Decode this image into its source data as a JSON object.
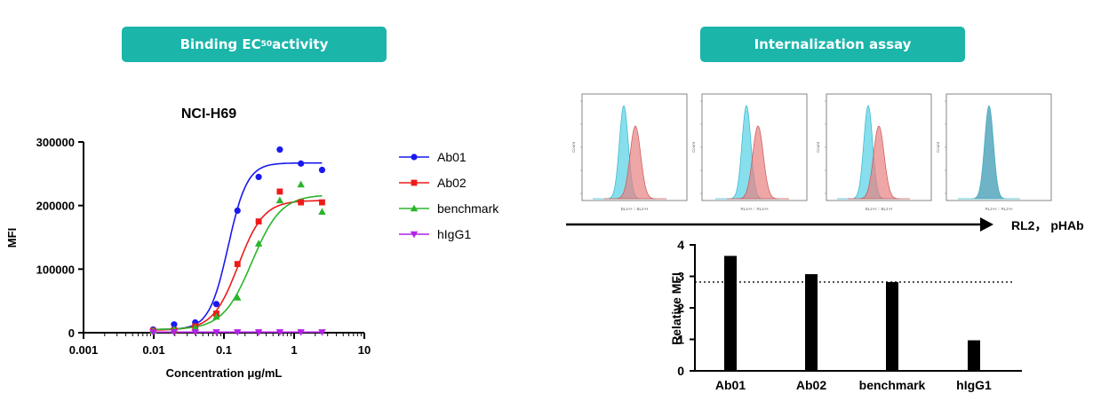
{
  "headers": {
    "left": {
      "main": "Binding EC",
      "sub": "50",
      "tail": " activity"
    },
    "right": "Internalization assay"
  },
  "flow": {
    "axis_label": "RL2， pHAb"
  },
  "colors": {
    "teal": "#1bb5a9",
    "ab01": "#1a1aee",
    "ab02": "#ee1a1a",
    "benchmark": "#2ab52a",
    "higg1": "#b422e8",
    "hist_blue": "#5fd3e6",
    "hist_red": "#e88080",
    "hist_overlap": "#5a8fa8"
  },
  "chart_data": [
    {
      "type": "scatter",
      "title": "NCI-H69",
      "xlabel": "Concentration μg/mL",
      "ylabel": "MFI",
      "xscale": "log",
      "xlim": [
        0.001,
        10
      ],
      "ylim": [
        0,
        300000
      ],
      "xticks": [
        "0.001",
        "0.01",
        "0.1",
        "1",
        "10"
      ],
      "yticks": [
        "0",
        "100000",
        "200000",
        "300000"
      ],
      "legend_position": "right",
      "x": [
        0.0098,
        0.0195,
        0.039,
        0.078,
        0.156,
        0.3125,
        0.625,
        1.25,
        2.5
      ],
      "series": [
        {
          "name": "Ab01",
          "marker": "circle",
          "values": [
            5000,
            13000,
            16000,
            45000,
            192000,
            245000,
            288000,
            266000,
            256000
          ],
          "fit": {
            "bottom": 5000,
            "top": 267000,
            "ec50": 0.115,
            "hill": 3.2
          }
        },
        {
          "name": "Ab02",
          "marker": "square",
          "values": [
            3000,
            4000,
            10000,
            30000,
            108000,
            175000,
            222000,
            205000,
            205000
          ],
          "fit": {
            "bottom": 4000,
            "top": 208000,
            "ec50": 0.16,
            "hill": 2.4
          }
        },
        {
          "name": "benchmark",
          "marker": "triangle-up",
          "values": [
            3000,
            5000,
            8000,
            25000,
            55000,
            140000,
            208000,
            233000,
            190000
          ],
          "fit": {
            "bottom": 5000,
            "top": 217000,
            "ec50": 0.25,
            "hill": 2.1
          }
        },
        {
          "name": "hIgG1",
          "marker": "triangle-down",
          "values": [
            1000,
            1000,
            1000,
            1000,
            1000,
            1000,
            1000,
            1000,
            1000
          ],
          "fit": {
            "bottom": 1000,
            "top": 1000,
            "ec50": 0.1,
            "hill": 1
          }
        }
      ]
    },
    {
      "type": "bar",
      "categories": [
        "Ab01",
        "Ab02",
        "benchmark",
        "hIgG1"
      ],
      "values": [
        3.65,
        3.07,
        2.82,
        0.97
      ],
      "ylabel": "Relative MFI",
      "ylim": [
        0,
        4
      ],
      "yticks": [
        "0",
        "1",
        "2",
        "3",
        "4"
      ],
      "reference_line": 2.82
    }
  ],
  "histograms": [
    {
      "xlabel": "BL2-H :: BL2-H",
      "ylabel": "Count"
    },
    {
      "xlabel": "RL2-H :: RL2-H",
      "ylabel": "Count"
    },
    {
      "xlabel": "BL2-H :: BL2-H",
      "ylabel": "Count"
    },
    {
      "xlabel": "RL2-H :: RL2-H",
      "ylabel": "Count"
    }
  ]
}
